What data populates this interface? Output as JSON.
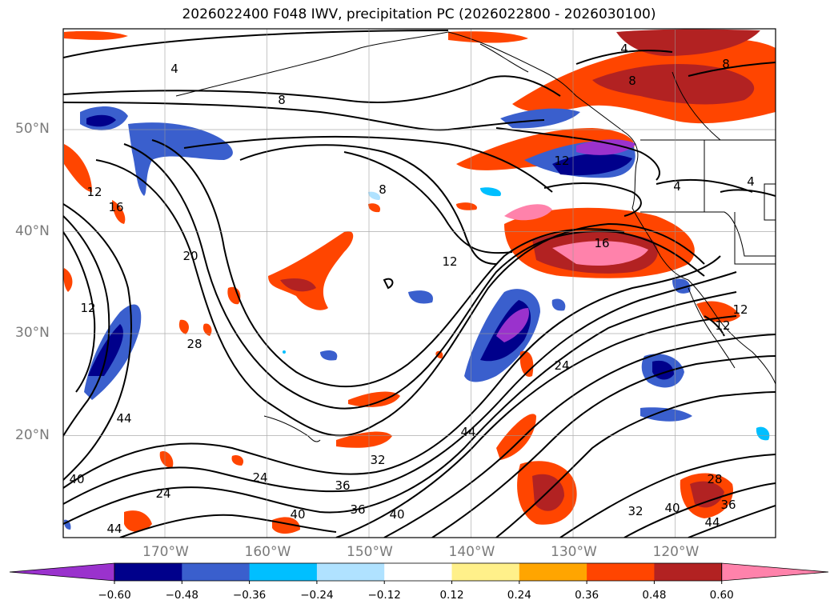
{
  "title": "2026022400 F048 IWV, precipitation PC (2026022800 - 2026030100)",
  "map": {
    "lat_labels": [
      {
        "text": "50°N",
        "lat": 50
      },
      {
        "text": "40°N",
        "lat": 40
      },
      {
        "text": "30°N",
        "lat": 30
      },
      {
        "text": "20°N",
        "lat": 20
      }
    ],
    "lon_labels": [
      {
        "text": "170°W",
        "lon": -170
      },
      {
        "text": "160°W",
        "lon": -160
      },
      {
        "text": "150°W",
        "lon": -150
      },
      {
        "text": "140°W",
        "lon": -140
      },
      {
        "text": "130°W",
        "lon": -130
      },
      {
        "text": "120°W",
        "lon": -120
      }
    ],
    "contour_labels": [
      "4",
      "8",
      "12",
      "16",
      "20",
      "24",
      "28",
      "32",
      "36",
      "40",
      "44"
    ]
  },
  "colorbar": {
    "colors": [
      "#9a32cd",
      "#00008b",
      "#3a5fcd",
      "#00bfff",
      "#b0e2ff",
      "#ffffff",
      "#fff08a",
      "#ffa500",
      "#ff4500",
      "#b22222",
      "#ff82ab"
    ],
    "ticks": [
      "−0.60",
      "−0.48",
      "−0.36",
      "−0.24",
      "−0.12",
      "0.12",
      "0.24",
      "0.36",
      "0.48",
      "0.60"
    ]
  }
}
